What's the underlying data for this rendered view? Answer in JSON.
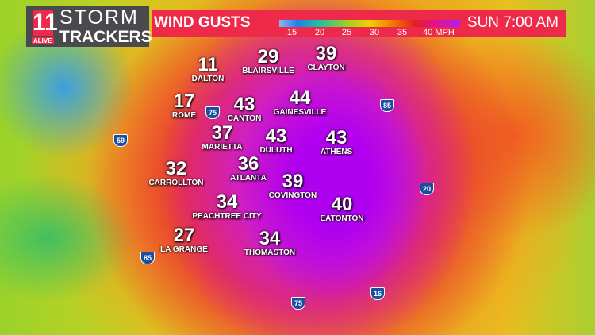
{
  "logo": {
    "number": "11",
    "alive": "ALIVE",
    "line1": "STORM",
    "line2": "TRACKERS"
  },
  "header": {
    "title": "WIND GUSTS",
    "legend_ticks": [
      "15",
      "20",
      "25",
      "30",
      "35",
      "40 MPH"
    ],
    "time": "SUN  7:00 AM",
    "color": "#ee2a4a"
  },
  "cities": [
    {
      "name": "DALTON",
      "value": "11"
    },
    {
      "name": "BLAIRSVILLE",
      "value": "29"
    },
    {
      "name": "CLAYTON",
      "value": "39"
    },
    {
      "name": "ROME",
      "value": "17"
    },
    {
      "name": "CANTON",
      "value": "43"
    },
    {
      "name": "GAINESVILLE",
      "value": "44"
    },
    {
      "name": "MARIETTA",
      "value": "37"
    },
    {
      "name": "DULUTH",
      "value": "43"
    },
    {
      "name": "ATHENS",
      "value": "43"
    },
    {
      "name": "CARROLLTON",
      "value": "32"
    },
    {
      "name": "ATLANTA",
      "value": "36"
    },
    {
      "name": "COVINGTON",
      "value": "39"
    },
    {
      "name": "EATONTON",
      "value": "40"
    },
    {
      "name": "PEACHTREE CITY",
      "value": "34"
    },
    {
      "name": "LA GRANGE",
      "value": "27"
    },
    {
      "name": "THOMASTON",
      "value": "34"
    }
  ],
  "interstates": [
    "85",
    "75",
    "59",
    "20",
    "85",
    "75",
    "16"
  ]
}
